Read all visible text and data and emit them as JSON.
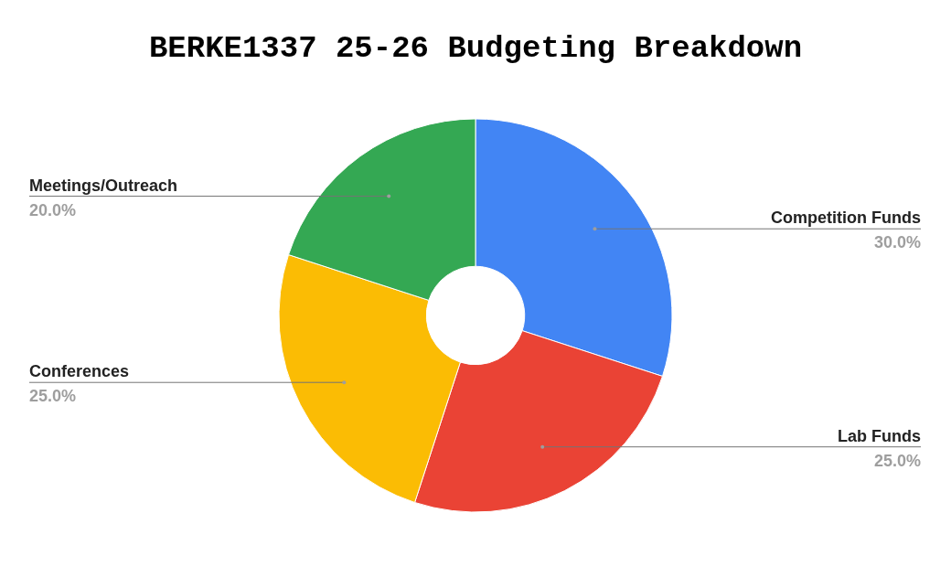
{
  "chart_data": {
    "type": "donut",
    "title": "BERKE1337 25-26 Budgeting Breakdown",
    "categories": [
      "Competition Funds",
      "Lab Funds",
      "Conferences",
      "Meetings/Outreach"
    ],
    "values": [
      30,
      25,
      25,
      20
    ],
    "colors": [
      "#4285f4",
      "#ea4335",
      "#fbbc04",
      "#34a853"
    ],
    "value_labels": [
      "30.0%",
      "25.0%",
      "25.0%",
      "20.0%"
    ]
  }
}
